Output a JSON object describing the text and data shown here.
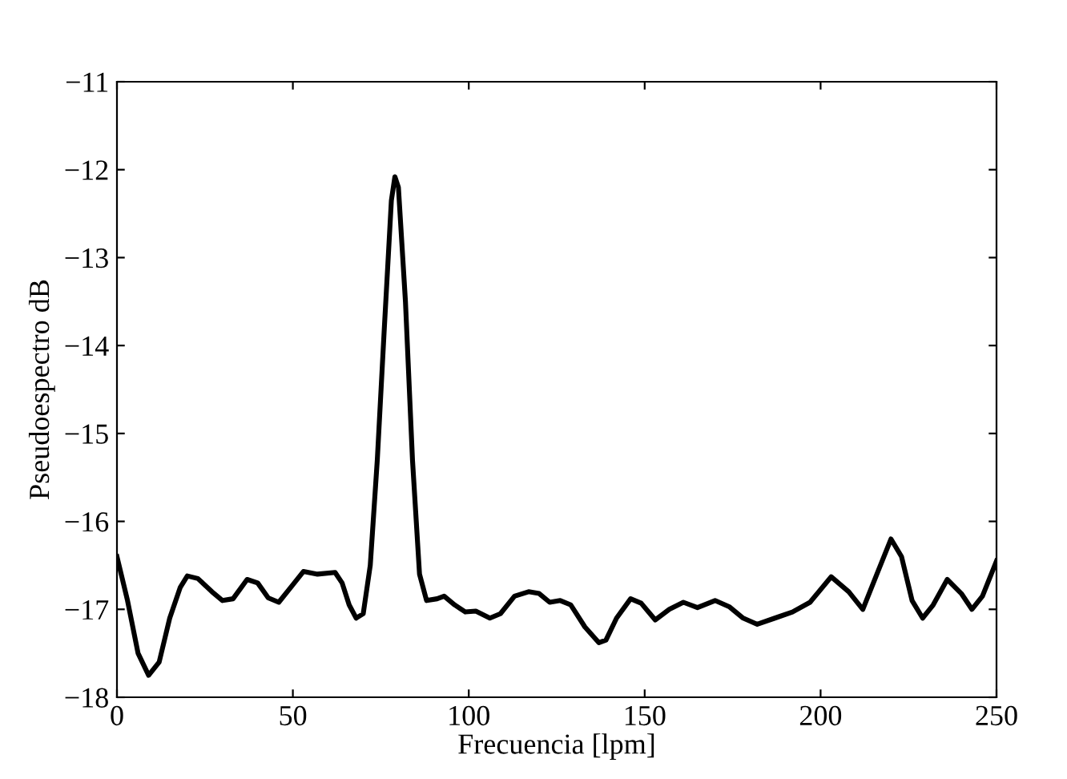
{
  "chart_data": {
    "type": "line",
    "xlabel": "Frecuencia [lpm]",
    "ylabel": "Pseudoespectro dB",
    "x": [
      0,
      3,
      6,
      9,
      12,
      15,
      18,
      20,
      23,
      27,
      30,
      33,
      37,
      40,
      43,
      46,
      50,
      53,
      57,
      62,
      64,
      66,
      68,
      70,
      72,
      74,
      76,
      78,
      79,
      80,
      82,
      84,
      86,
      88,
      91,
      93,
      96,
      99,
      102,
      106,
      109,
      113,
      117,
      120,
      123,
      126,
      129,
      133,
      137,
      139,
      142,
      146,
      149,
      153,
      157,
      161,
      165,
      170,
      174,
      178,
      182,
      187,
      192,
      197,
      203,
      208,
      212,
      216,
      220,
      223,
      226,
      229,
      232,
      236,
      240,
      243,
      246,
      250
    ],
    "series": [
      {
        "color": "#000000",
        "values": [
          -16.4,
          -16.9,
          -17.5,
          -17.75,
          -17.6,
          -17.1,
          -16.75,
          -16.62,
          -16.65,
          -16.8,
          -16.9,
          -16.88,
          -16.66,
          -16.7,
          -16.87,
          -16.92,
          -16.72,
          -16.57,
          -16.6,
          -16.58,
          -16.7,
          -16.95,
          -17.1,
          -17.05,
          -16.5,
          -15.3,
          -13.8,
          -12.35,
          -12.08,
          -12.2,
          -13.5,
          -15.3,
          -16.6,
          -16.9,
          -16.88,
          -16.85,
          -16.95,
          -17.03,
          -17.02,
          -17.1,
          -17.05,
          -16.85,
          -16.8,
          -16.82,
          -16.92,
          -16.9,
          -16.95,
          -17.2,
          -17.38,
          -17.35,
          -17.1,
          -16.88,
          -16.93,
          -17.12,
          -17.0,
          -16.92,
          -16.98,
          -16.9,
          -16.97,
          -17.1,
          -17.17,
          -17.1,
          -17.03,
          -16.92,
          -16.63,
          -16.8,
          -17.0,
          -16.6,
          -16.2,
          -16.4,
          -16.9,
          -17.1,
          -16.95,
          -16.66,
          -16.82,
          -17.0,
          -16.85,
          -16.45
        ]
      }
    ],
    "xlim": [
      0,
      250
    ],
    "xticks": [
      0,
      50,
      100,
      150,
      200,
      250
    ],
    "ylim": [
      -18,
      -11
    ],
    "yticks": [
      -18,
      -17,
      -16,
      -15,
      -14,
      -13,
      -12,
      -11
    ],
    "grid": false,
    "legend": false,
    "marker": "none",
    "line_style": "solid"
  }
}
